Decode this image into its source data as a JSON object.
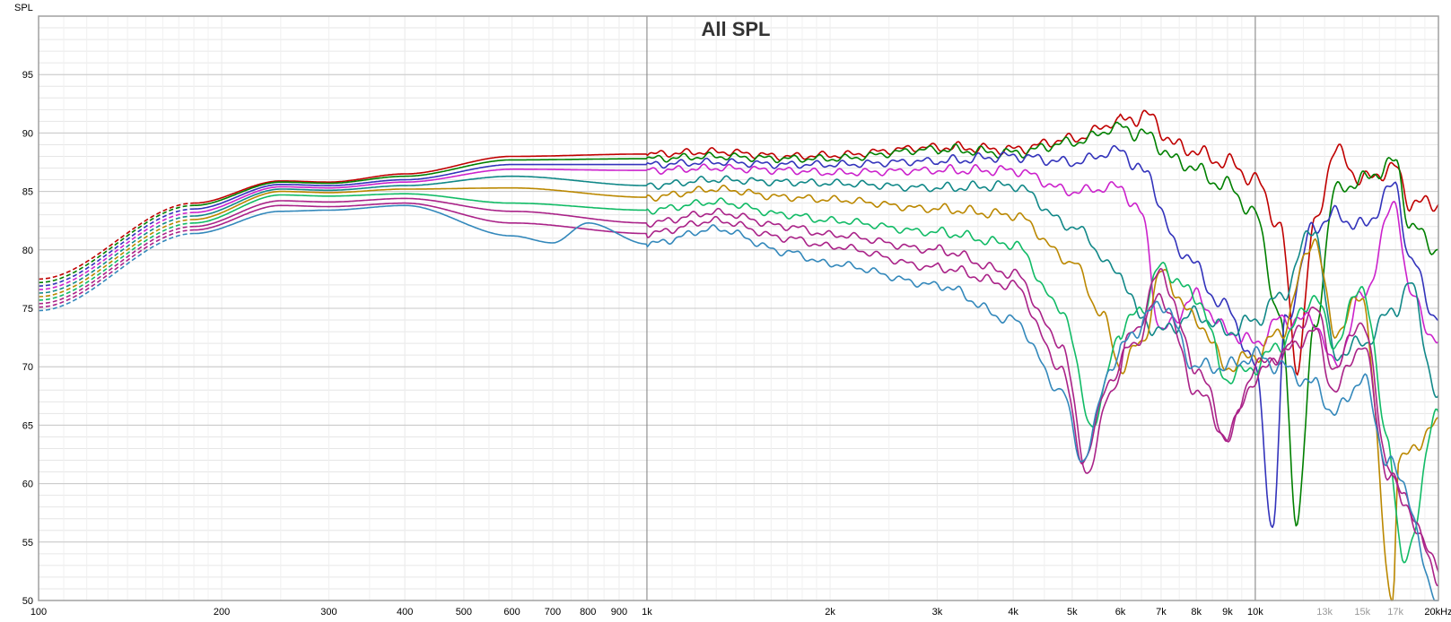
{
  "chart_data": {
    "type": "line",
    "title": "All SPL",
    "ylabel": "SPL",
    "x_scale": "log",
    "xlim": [
      100,
      20000
    ],
    "ylim": [
      50,
      100
    ],
    "grid": true,
    "y_ticks": [
      {
        "value": 50,
        "label": "50"
      },
      {
        "value": 55,
        "label": "55"
      },
      {
        "value": 60,
        "label": "60"
      },
      {
        "value": 65,
        "label": "65"
      },
      {
        "value": 70,
        "label": "70"
      },
      {
        "value": 75,
        "label": "75"
      },
      {
        "value": 80,
        "label": "80"
      },
      {
        "value": 85,
        "label": "85"
      },
      {
        "value": 90,
        "label": "90"
      },
      {
        "value": 95,
        "label": "95"
      }
    ],
    "x_ticks": [
      {
        "value": 100,
        "label": "100"
      },
      {
        "value": 200,
        "label": "200"
      },
      {
        "value": 300,
        "label": "300"
      },
      {
        "value": 400,
        "label": "400"
      },
      {
        "value": 500,
        "label": "500"
      },
      {
        "value": 600,
        "label": "600"
      },
      {
        "value": 700,
        "label": "700"
      },
      {
        "value": 800,
        "label": "800"
      },
      {
        "value": 900,
        "label": "900"
      },
      {
        "value": 1000,
        "label": "1k"
      },
      {
        "value": 2000,
        "label": "2k"
      },
      {
        "value": 3000,
        "label": "3k"
      },
      {
        "value": 4000,
        "label": "4k"
      },
      {
        "value": 5000,
        "label": "5k"
      },
      {
        "value": 6000,
        "label": "6k"
      },
      {
        "value": 7000,
        "label": "7k"
      },
      {
        "value": 8000,
        "label": "8k"
      },
      {
        "value": 9000,
        "label": "9k"
      },
      {
        "value": 10000,
        "label": "10k"
      },
      {
        "value": 13000,
        "label": "13k",
        "faded": true
      },
      {
        "value": 15000,
        "label": "15k",
        "faded": true
      },
      {
        "value": 17000,
        "label": "17k",
        "faded": true
      },
      {
        "value": 20000,
        "label": "20kHz"
      }
    ],
    "extrapolated_below_hz": 180,
    "series": [
      {
        "color": "#c00000",
        "x": [
          100,
          180,
          250,
          300,
          400,
          600,
          1000,
          1300,
          1700,
          2000,
          3000,
          4000,
          5000,
          6000,
          6600,
          7500,
          9000,
          10000,
          11000,
          11700,
          12500,
          13500,
          15000,
          17000,
          18000,
          20000
        ],
        "y": [
          77.5,
          84,
          85.9,
          85.8,
          86.5,
          88,
          88.2,
          88.4,
          88,
          88.1,
          88.8,
          88.6,
          89.5,
          91,
          91.5,
          88.8,
          87.5,
          86,
          82,
          70,
          82,
          88.5,
          86,
          87,
          84,
          84
        ]
      },
      {
        "color": "#008000",
        "x": [
          100,
          180,
          250,
          300,
          400,
          600,
          1000,
          1300,
          1700,
          2000,
          3000,
          4000,
          5000,
          6000,
          6600,
          7500,
          9000,
          10000,
          11000,
          11700,
          12500,
          13500,
          15000,
          17000,
          18000,
          20000
        ],
        "y": [
          77.2,
          83.8,
          85.8,
          85.7,
          86.3,
          87.7,
          87.8,
          88,
          87.8,
          87.8,
          88.6,
          88.3,
          89.2,
          90.5,
          89.8,
          87.5,
          85.5,
          83,
          74,
          57,
          73,
          85,
          86,
          87.5,
          82,
          80
        ]
      },
      {
        "color": "#3333bb",
        "x": [
          100,
          180,
          250,
          300,
          400,
          600,
          1000,
          1300,
          1700,
          2000,
          3000,
          4000,
          5000,
          6000,
          6600,
          7500,
          9000,
          10000,
          10700,
          11200,
          12500,
          13500,
          15000,
          17000,
          18000,
          20000
        ],
        "y": [
          76.9,
          83.5,
          85.6,
          85.5,
          86,
          87.3,
          87.3,
          87.5,
          87.3,
          87.3,
          87.6,
          88,
          87.5,
          88.5,
          86.5,
          80,
          75,
          70,
          56,
          74,
          82,
          83,
          82,
          85.5,
          79,
          74
        ]
      },
      {
        "color": "#cc22cc",
        "x": [
          100,
          180,
          250,
          300,
          400,
          600,
          1000,
          1300,
          1700,
          2000,
          3000,
          4000,
          5000,
          6000,
          6500,
          7000,
          8000,
          9000,
          10000,
          11000,
          12500,
          13500,
          15000,
          17000,
          18000,
          20000
        ],
        "y": [
          76.6,
          83.2,
          85.4,
          85.3,
          85.8,
          86.9,
          86.8,
          87,
          86.8,
          86.6,
          86.8,
          86.8,
          85,
          85.4,
          83,
          73,
          76,
          73,
          72,
          74,
          74,
          70,
          76,
          84,
          76,
          72
        ]
      },
      {
        "color": "#118888",
        "x": [
          100,
          180,
          250,
          300,
          400,
          600,
          1000,
          1300,
          1700,
          2000,
          3000,
          4000,
          5000,
          6000,
          6500,
          7000,
          8000,
          9000,
          10000,
          11000,
          12500,
          13500,
          15000,
          17000,
          18000,
          20000
        ],
        "y": [
          76.3,
          82.9,
          85.2,
          85.1,
          85.5,
          86.3,
          85.5,
          86,
          85.8,
          85.7,
          85.3,
          85.5,
          82,
          78,
          74,
          73,
          74.5,
          73,
          74,
          76,
          82,
          71,
          72,
          75,
          77,
          67
        ]
      },
      {
        "color": "#bb8800",
        "x": [
          100,
          180,
          250,
          300,
          400,
          600,
          1000,
          1300,
          1700,
          2000,
          3000,
          4000,
          5000,
          5600,
          6000,
          6500,
          7000,
          8000,
          9000,
          10000,
          11000,
          12500,
          13500,
          15000,
          16800,
          17200,
          20000
        ],
        "y": [
          76.0,
          82.6,
          85.0,
          84.9,
          85.2,
          85.3,
          84.5,
          85.2,
          84.5,
          84.3,
          83.5,
          83,
          79,
          74.5,
          70,
          72,
          78,
          74,
          70,
          71,
          73,
          81,
          73,
          76,
          50,
          62,
          65
        ]
      },
      {
        "color": "#11bb66",
        "x": [
          100,
          180,
          250,
          300,
          400,
          600,
          1000,
          1300,
          1700,
          2000,
          3000,
          4000,
          4800,
          5400,
          6000,
          6500,
          7000,
          8000,
          9000,
          10000,
          11000,
          12500,
          13500,
          15000,
          16500,
          17500,
          20000
        ],
        "y": [
          75.7,
          82.3,
          84.7,
          84.6,
          84.8,
          84.0,
          83.4,
          84.1,
          83,
          82.5,
          81.5,
          80.5,
          75,
          65,
          73,
          75,
          78.5,
          76,
          69,
          70,
          72,
          76,
          72,
          77,
          64,
          53,
          66
        ]
      },
      {
        "color": "#aa2288",
        "x": [
          100,
          180,
          250,
          300,
          400,
          600,
          1000,
          1300,
          1700,
          2000,
          3000,
          4000,
          4800,
          5300,
          5800,
          6300,
          7000,
          8000,
          9000,
          10000,
          11000,
          12500,
          13500,
          15000,
          16500,
          17500,
          20000
        ],
        "y": [
          75.4,
          82.0,
          84.2,
          84.1,
          84.4,
          83.3,
          82.3,
          83.2,
          82,
          81.3,
          80,
          78,
          72,
          61,
          68,
          73,
          78,
          70,
          64,
          69,
          71,
          75,
          70,
          74,
          62,
          58,
          53
        ]
      },
      {
        "color": "#aa2288",
        "x": [
          100,
          180,
          250,
          300,
          400,
          600,
          1000,
          1300,
          1700,
          2000,
          3000,
          4000,
          4800,
          5200,
          5800,
          6300,
          7000,
          8000,
          9000,
          10000,
          11000,
          12500,
          13500,
          15000,
          16500,
          17500,
          20000
        ],
        "y": [
          75.1,
          81.7,
          83.8,
          83.7,
          84.0,
          82.3,
          81.4,
          82.5,
          81,
          80.3,
          78.5,
          77,
          70,
          62,
          69,
          72,
          76,
          68,
          64,
          70,
          71,
          73,
          68,
          72,
          61,
          59,
          52
        ]
      },
      {
        "color": "#3388bb",
        "x": [
          100,
          180,
          250,
          300,
          400,
          600,
          700,
          800,
          1000,
          1300,
          1700,
          2000,
          3000,
          4000,
          4800,
          5200,
          5800,
          6300,
          7000,
          8000,
          9000,
          10000,
          11000,
          12500,
          13500,
          15000,
          16500,
          17500,
          19500,
          20000
        ],
        "y": [
          74.8,
          81.4,
          83.3,
          83.4,
          83.8,
          81.2,
          80.6,
          82.3,
          80.5,
          81.8,
          79.8,
          78.8,
          77,
          74,
          68,
          62,
          70,
          73,
          75.5,
          70,
          70,
          71,
          70,
          68.5,
          66,
          69,
          62,
          60,
          51,
          50
        ]
      }
    ]
  }
}
